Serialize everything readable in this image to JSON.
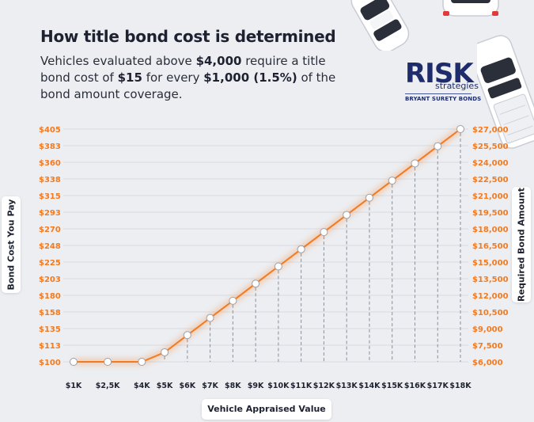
{
  "header": {
    "title": "How title bond cost is determined",
    "subtitle_parts": [
      "Vehicles evaluated above ",
      "$4,000",
      " require a title bond cost of ",
      "$15",
      " for every ",
      "$1,000 (1.5%)",
      " of the bond amount coverage."
    ]
  },
  "logo": {
    "main": "RISK",
    "sub": "strategies",
    "tagline": "BRYANT SURETY BONDS"
  },
  "axis_labels": {
    "left": "Bond Cost You Pay",
    "right": "Required Bond Amount",
    "bottom": "Vehicle Appraised Value"
  },
  "colors": {
    "line": "#f47a20",
    "tick_label": "#f47a20",
    "grid": "#d8dbe2",
    "drop_line": "#8a8f9a",
    "title": "#1e2230",
    "brand": "#1f2c6b"
  },
  "icons": [
    "car-top-left-icon",
    "car-top-right-icon",
    "pickup-truck-icon"
  ],
  "chart_data": {
    "type": "line",
    "title": "How title bond cost is determined",
    "xlabel": "Vehicle Appraised Value",
    "ylabel": "Bond Cost You Pay",
    "y2label": "Required Bond Amount",
    "categories": [
      "$1K",
      "$2,5K",
      "$4K",
      "$5K",
      "$6K",
      "$7K",
      "$8K",
      "$9K",
      "$10K",
      "$11K",
      "$12K",
      "$13K",
      "$14K",
      "$15K",
      "$16K",
      "$17K",
      "$18K"
    ],
    "x": [
      1000,
      2500,
      4000,
      5000,
      6000,
      7000,
      8000,
      9000,
      10000,
      11000,
      12000,
      13000,
      14000,
      15000,
      16000,
      17000,
      18000
    ],
    "series": [
      {
        "name": "Bond Cost You Pay",
        "values": [
          100,
          100,
          100,
          112.5,
          135,
          157.5,
          180,
          202.5,
          225,
          247.5,
          270,
          292.5,
          315,
          337.5,
          360,
          382.5,
          405
        ]
      }
    ],
    "ylim": [
      100,
      405
    ],
    "y_ticks": [
      100,
      112.5,
      135,
      157.5,
      180,
      202.5,
      225,
      247.5,
      270,
      292.5,
      315,
      337.5,
      360,
      382.5,
      405
    ],
    "y_tick_labels": [
      "$100",
      "$113",
      "$135",
      "$158",
      "$180",
      "$203",
      "$225",
      "$248",
      "$270",
      "$293",
      "$315",
      "$338",
      "$360",
      "$383",
      "$405"
    ],
    "y2lim": [
      6000,
      27000
    ],
    "y2_tick_labels": [
      "$6,000",
      "$7,500",
      "$9,000",
      "$10,500",
      "$12,000",
      "$13,500",
      "$15,000",
      "$16,500",
      "$18,000",
      "$19,500",
      "$21,000",
      "$22,500",
      "$24,000",
      "$25,500",
      "$27,000"
    ],
    "grid": true
  }
}
